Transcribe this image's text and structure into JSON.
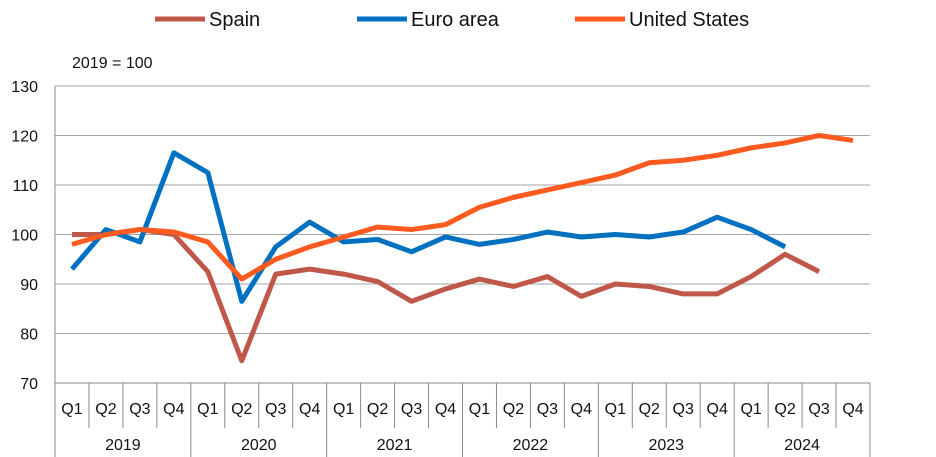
{
  "chart_data": {
    "type": "line",
    "subtitle": "2019 = 100",
    "ylim": [
      70,
      130
    ],
    "yticks": [
      70,
      80,
      90,
      100,
      110,
      120,
      130
    ],
    "grid": true,
    "legend_position": "top",
    "years": [
      "2019",
      "2020",
      "2021",
      "2022",
      "2023",
      "2024"
    ],
    "quarters": [
      "Q1",
      "Q2",
      "Q3",
      "Q4"
    ],
    "series": [
      {
        "name": "Spain",
        "color": "#C0584A",
        "values": [
          100,
          100,
          101,
          100,
          92.5,
          74.5,
          92,
          93,
          92,
          90.5,
          86.5,
          89,
          91,
          89.5,
          91.5,
          87.5,
          90,
          89.5,
          88,
          88,
          91.5,
          96,
          92.5,
          null
        ]
      },
      {
        "name": "Euro area",
        "color": "#0070C0",
        "values": [
          93,
          101,
          98.5,
          116.5,
          112.5,
          86.5,
          97.5,
          102.5,
          98.5,
          99,
          96.5,
          99.5,
          98,
          99,
          100.5,
          99.5,
          100,
          99.5,
          100.5,
          103.5,
          101,
          97.5,
          null,
          null
        ]
      },
      {
        "name": "United States",
        "color": "#FF5A1F",
        "values": [
          98,
          100,
          101,
          100.5,
          98.5,
          91,
          95,
          97.5,
          99.5,
          101.5,
          101,
          102,
          105.5,
          107.5,
          109,
          110.5,
          112,
          114.5,
          115,
          116,
          117.5,
          118.5,
          120,
          119
        ]
      }
    ]
  }
}
